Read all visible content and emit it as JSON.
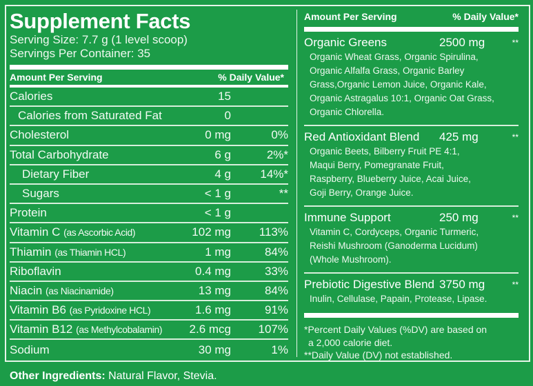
{
  "title": "Supplement Facts",
  "serving_size": "Serving Size:  7.7 g (1 level scoop)",
  "servings_per_container": "Servings Per Container:  35",
  "header": {
    "amount": "Amount Per Serving",
    "dv": "% Daily Value*"
  },
  "rows": [
    {
      "name": "Calories",
      "note": "",
      "amount": "15",
      "dv": ""
    },
    {
      "name": "Calories from Saturated Fat",
      "note": "",
      "amount": "0",
      "dv": ""
    },
    {
      "name": "Cholesterol",
      "note": "",
      "amount": "0 mg",
      "dv": "0%"
    },
    {
      "name": "Total Carbohydrate",
      "note": "",
      "amount": "6 g",
      "dv": "2%*"
    },
    {
      "name": "Dietary Fiber",
      "note": "",
      "amount": "4 g",
      "dv": "14%*"
    },
    {
      "name": "Sugars",
      "note": "",
      "amount": "< 1 g",
      "dv": "**"
    },
    {
      "name": "Protein",
      "note": "",
      "amount": "< 1 g",
      "dv": ""
    },
    {
      "name": "Vitamin C",
      "note": "(as Ascorbic Acid)",
      "amount": "102 mg",
      "dv": "113%"
    },
    {
      "name": "Thiamin",
      "note": "(as Thiamin HCL)",
      "amount": "1 mg",
      "dv": "84%"
    },
    {
      "name": "Riboflavin",
      "note": "",
      "amount": "0.4 mg",
      "dv": "33%"
    },
    {
      "name": "Niacin",
      "note": "(as Niacinamide)",
      "amount": "13 mg",
      "dv": "84%"
    },
    {
      "name": "Vitamin B6",
      "note": "(as Pyridoxine HCL)",
      "amount": "1.6 mg",
      "dv": "91%"
    },
    {
      "name": "Vitamin B12",
      "note": "(as Methylcobalamin)",
      "amount": "2.6 mcg",
      "dv": "107%"
    },
    {
      "name": "Sodium",
      "note": "",
      "amount": "30 mg",
      "dv": "1%"
    }
  ],
  "blends": [
    {
      "name": "Organic Greens",
      "amount": "2500 mg",
      "dv": "**",
      "lines": [
        "Organic Wheat Grass, Organic Spirulina,",
        "Organic Alfalfa Grass, Organic Barley",
        "Grass,Organic Lemon Juice, Organic Kale,",
        "Organic Astragalus 10:1, Organic Oat Grass,",
        "Organic Chlorella."
      ]
    },
    {
      "name": "Red Antioxidant Blend",
      "amount": "425 mg",
      "dv": "**",
      "lines": [
        "Organic Beets, Bilberry Fruit PE 4:1,",
        "Maqui Berry, Pomegranate Fruit,",
        "Raspberry, Blueberry Juice, Acai Juice,",
        "Goji Berry, Orange Juice."
      ]
    },
    {
      "name": "Immune Support",
      "amount": "250 mg",
      "dv": "**",
      "lines": [
        "Vitamin C, Cordyceps, Organic Turmeric,",
        "Reishi Mushroom (Ganoderma Lucidum)",
        "(Whole Mushroom)."
      ]
    },
    {
      "name": "Prebiotic Digestive Blend",
      "amount": "3750 mg",
      "dv": "**",
      "lines": [
        "Inulin, Cellulase, Papain, Protease, Lipase."
      ]
    }
  ],
  "footnotes": [
    "*Percent Daily Values (%DV) are based on",
    "a 2,000 calorie diet.",
    "**Daily Value (DV) not established."
  ],
  "other_ingredients": {
    "label": "Other Ingredients:",
    "value": " Natural Flavor, Stevia."
  },
  "colors": {
    "background": "#1c9c48",
    "text": "#ffffff"
  }
}
